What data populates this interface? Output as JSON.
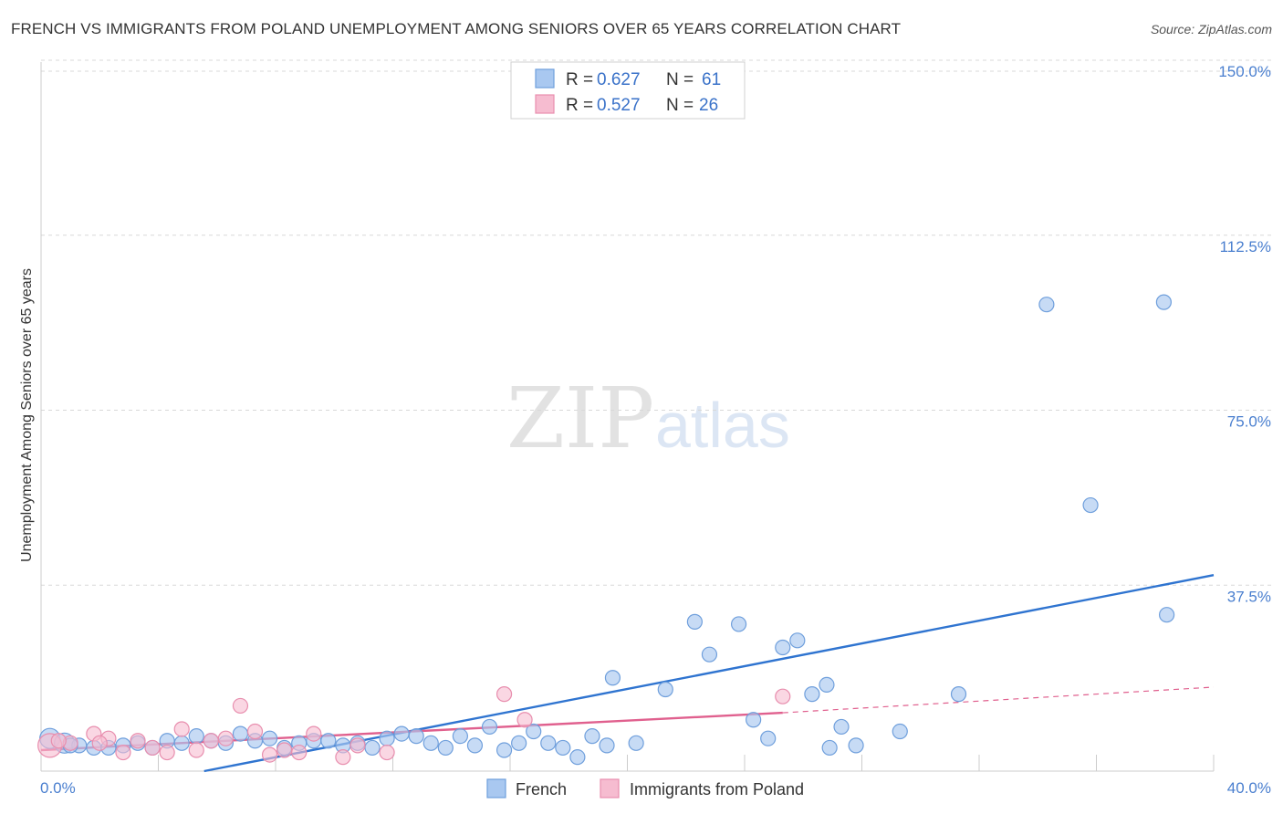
{
  "title": "FRENCH VS IMMIGRANTS FROM POLAND UNEMPLOYMENT AMONG SENIORS OVER 65 YEARS CORRELATION CHART",
  "source": "Source: ZipAtlas.com",
  "watermark": {
    "zip": "ZIP",
    "atlas": "atlas"
  },
  "colors": {
    "french_fill": "#a9c8f0",
    "french_stroke": "#6f9fdc",
    "french_line": "#2f74d0",
    "poland_fill": "#f6bcd0",
    "poland_stroke": "#e88eae",
    "poland_line": "#e0608e",
    "grid": "#d8d8d8",
    "tick_text": "#4a7fcf"
  },
  "legend": {
    "rows": [
      {
        "r_label": "R = ",
        "r_value": "0.627",
        "n_label": "N = ",
        "n_value": "61"
      },
      {
        "r_label": "R = ",
        "r_value": "0.527",
        "n_label": "N = ",
        "n_value": "26"
      }
    ]
  },
  "chart_data": {
    "type": "scatter",
    "title": "FRENCH VS IMMIGRANTS FROM POLAND UNEMPLOYMENT AMONG SENIORS OVER 65 YEARS CORRELATION CHART",
    "xlabel": "",
    "ylabel": "Unemployment Among Seniors over 65 years",
    "xlim": [
      0,
      40
    ],
    "ylim": [
      0,
      150
    ],
    "y_ticks": [
      37.5,
      75.0,
      112.5,
      150.0
    ],
    "y_tick_labels": [
      "37.5%",
      "75.0%",
      "112.5%",
      "150.0%"
    ],
    "x_tick_labels": [
      "0.0%",
      "40.0%"
    ],
    "series": [
      {
        "name": "French",
        "r": 0.627,
        "n": 61,
        "trend": {
          "x": [
            0,
            40
          ],
          "y": [
            -7.5,
            42.0
          ]
        },
        "points": [
          [
            0.3,
            7.0
          ],
          [
            0.8,
            6.0
          ],
          [
            1.3,
            5.5
          ],
          [
            1.8,
            5.0
          ],
          [
            2.3,
            5.0
          ],
          [
            2.8,
            5.5
          ],
          [
            3.3,
            6.0
          ],
          [
            3.8,
            5.0
          ],
          [
            4.3,
            6.5
          ],
          [
            4.8,
            6.0
          ],
          [
            5.3,
            7.5
          ],
          [
            5.8,
            6.5
          ],
          [
            6.3,
            6.0
          ],
          [
            6.8,
            8.0
          ],
          [
            7.3,
            6.5
          ],
          [
            7.8,
            7.0
          ],
          [
            8.3,
            5.0
          ],
          [
            8.8,
            6.0
          ],
          [
            9.3,
            6.5
          ],
          [
            9.8,
            6.5
          ],
          [
            10.3,
            5.5
          ],
          [
            10.8,
            6.0
          ],
          [
            11.3,
            5.0
          ],
          [
            11.8,
            7.0
          ],
          [
            12.3,
            8.0
          ],
          [
            12.8,
            7.5
          ],
          [
            13.3,
            6.0
          ],
          [
            13.8,
            5.0
          ],
          [
            14.3,
            7.5
          ],
          [
            14.8,
            5.5
          ],
          [
            15.3,
            9.5
          ],
          [
            15.8,
            4.5
          ],
          [
            16.3,
            6.0
          ],
          [
            16.8,
            8.5
          ],
          [
            17.3,
            6.0
          ],
          [
            17.8,
            5.0
          ],
          [
            18.3,
            3.0
          ],
          [
            18.8,
            7.5
          ],
          [
            19.3,
            5.5
          ],
          [
            19.5,
            20.0
          ],
          [
            20.3,
            6.0
          ],
          [
            21.3,
            17.5
          ],
          [
            22.3,
            32.0
          ],
          [
            22.8,
            25.0
          ],
          [
            23.8,
            31.5
          ],
          [
            24.3,
            11.0
          ],
          [
            24.8,
            7.0
          ],
          [
            25.3,
            26.5
          ],
          [
            25.8,
            28.0
          ],
          [
            26.3,
            16.5
          ],
          [
            26.8,
            18.5
          ],
          [
            26.9,
            5.0
          ],
          [
            27.3,
            9.5
          ],
          [
            27.8,
            5.5
          ],
          [
            29.3,
            8.5
          ],
          [
            31.3,
            16.5
          ],
          [
            34.3,
            100.0
          ],
          [
            35.8,
            57.0
          ],
          [
            38.3,
            100.5
          ],
          [
            38.4,
            33.5
          ],
          [
            1.0,
            5.5
          ]
        ]
      },
      {
        "name": "Immigrants from Poland",
        "r": 0.527,
        "n": 26,
        "trend": {
          "x": [
            0,
            25.3
          ],
          "y": [
            4.5,
            12.5
          ]
        },
        "trend_ext": {
          "x": [
            25.3,
            40
          ],
          "y": [
            12.5,
            18.0
          ]
        },
        "points": [
          [
            0.3,
            5.5
          ],
          [
            1.0,
            6.0
          ],
          [
            1.8,
            8.0
          ],
          [
            2.3,
            7.0
          ],
          [
            2.8,
            4.0
          ],
          [
            3.3,
            6.5
          ],
          [
            3.8,
            5.0
          ],
          [
            4.3,
            4.0
          ],
          [
            4.8,
            9.0
          ],
          [
            5.3,
            4.5
          ],
          [
            5.8,
            6.5
          ],
          [
            6.3,
            7.0
          ],
          [
            6.8,
            14.0
          ],
          [
            7.3,
            8.5
          ],
          [
            7.8,
            3.5
          ],
          [
            8.3,
            4.5
          ],
          [
            8.8,
            4.0
          ],
          [
            9.3,
            8.0
          ],
          [
            10.3,
            3.0
          ],
          [
            10.8,
            5.5
          ],
          [
            11.8,
            4.0
          ],
          [
            15.8,
            16.5
          ],
          [
            16.5,
            11.0
          ],
          [
            25.3,
            16.0
          ],
          [
            2.0,
            6.0
          ],
          [
            0.6,
            6.5
          ]
        ]
      }
    ]
  }
}
